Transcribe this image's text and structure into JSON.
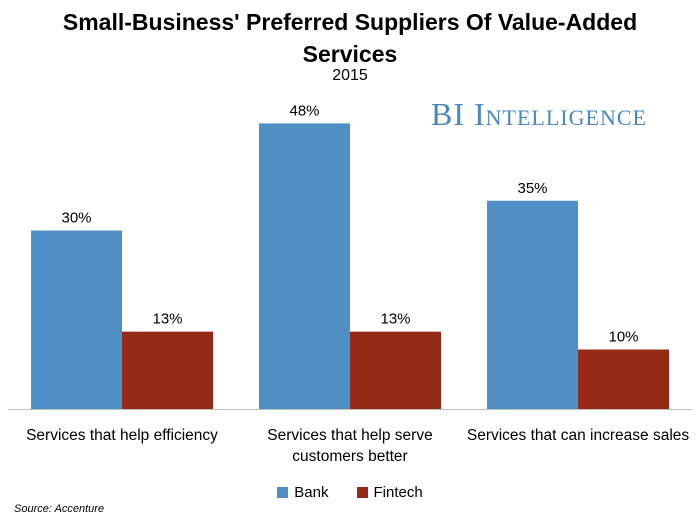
{
  "chart_data": {
    "type": "bar",
    "title": "Small-Business' Preferred Suppliers Of Value-Added Services",
    "subtitle": "2015",
    "categories": [
      "Services that help efficiency",
      "Services that help serve customers better",
      "Services that can increase sales"
    ],
    "category_lines": [
      [
        "Services that help efficiency"
      ],
      [
        "Services that help serve",
        "customers better"
      ],
      [
        "Services that can increase sales"
      ]
    ],
    "series": [
      {
        "name": "Bank",
        "values": [
          30,
          48,
          35
        ],
        "labels": [
          "30%",
          "48%",
          "35%"
        ],
        "color": "#4f8fc3"
      },
      {
        "name": "Fintech",
        "values": [
          13,
          13,
          10
        ],
        "labels": [
          "13%",
          "13%",
          "10%"
        ],
        "color": "#952b17"
      }
    ],
    "ylim": [
      0,
      50
    ],
    "grid": false,
    "legend_placement": "bottom",
    "source": "Source: Accenture",
    "watermark": "BI Intelligence"
  }
}
